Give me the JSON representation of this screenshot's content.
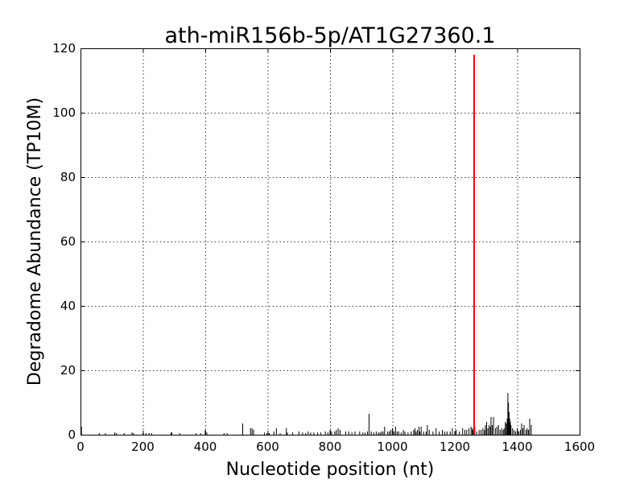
{
  "chart_data": {
    "type": "bar",
    "title": "ath-miR156b-5p/AT1G27360.1",
    "xlabel": "Nucleotide position (nt)",
    "ylabel": "Degradome Abundance (TP10M)",
    "xlim": [
      0,
      1600
    ],
    "ylim": [
      0,
      120
    ],
    "xticks": [
      0,
      200,
      400,
      600,
      800,
      1000,
      1200,
      1400,
      1600
    ],
    "yticks": [
      0,
      20,
      40,
      60,
      80,
      100,
      120
    ],
    "grid": true,
    "legend": "none",
    "colors": {
      "background": "#95c85b",
      "target": "#ff0000",
      "text": "#000000"
    },
    "series": [
      {
        "color": "#000000",
        "x": [
          3,
          60,
          80,
          110,
          115,
          140,
          165,
          170,
          200,
          210,
          220,
          228,
          290,
          293,
          318,
          370,
          385,
          400,
          405,
          460,
          470,
          520,
          545,
          550,
          555,
          590,
          598,
          605,
          620,
          628,
          640,
          660,
          663,
          680,
          700,
          712,
          722,
          730,
          738,
          748,
          760,
          770,
          785,
          793,
          800,
          805,
          815,
          820,
          826,
          832,
          850,
          860,
          870,
          880,
          895,
          905,
          912,
          920,
          925,
          932,
          940,
          948,
          955,
          960,
          965,
          970,
          975,
          985,
          990,
          995,
          1000,
          1005,
          1010,
          1015,
          1020,
          1028,
          1035,
          1040,
          1050,
          1060,
          1068,
          1072,
          1076,
          1080,
          1085,
          1088,
          1092,
          1100,
          1108,
          1112,
          1118,
          1130,
          1140,
          1150,
          1160,
          1168,
          1175,
          1185,
          1192,
          1200,
          1205,
          1215,
          1225,
          1232,
          1238,
          1245,
          1252,
          1256,
          1258,
          1264,
          1270,
          1278,
          1284,
          1290,
          1295,
          1298,
          1302,
          1306,
          1310,
          1314,
          1316,
          1320,
          1324,
          1330,
          1335,
          1340,
          1345,
          1350,
          1355,
          1358,
          1362,
          1365,
          1368,
          1370,
          1372,
          1374,
          1376,
          1378,
          1380,
          1385,
          1390,
          1395,
          1400,
          1405,
          1410,
          1414,
          1418,
          1422,
          1428,
          1432,
          1436,
          1440,
          1445
        ],
        "y": [
          2.5,
          0.5,
          0.5,
          0.7,
          0.5,
          0.5,
          0.7,
          0.5,
          0.5,
          0.5,
          0.5,
          0.5,
          0.7,
          0.7,
          0.5,
          0.5,
          0.5,
          1.5,
          0.7,
          0.5,
          0.5,
          3.5,
          2,
          2,
          1.5,
          0.7,
          0.5,
          0.5,
          1,
          2,
          0.5,
          2,
          0.7,
          0.7,
          1,
          0.7,
          0.5,
          1,
          0.7,
          0.7,
          0.7,
          0.7,
          1,
          0.7,
          1.5,
          1,
          1,
          1.5,
          2,
          1.5,
          1,
          1,
          0.7,
          1,
          1,
          0.7,
          0.7,
          1,
          6.5,
          1,
          0.7,
          1,
          0.7,
          0.7,
          1,
          1,
          2.5,
          1,
          1,
          1.5,
          2,
          1,
          2.5,
          1,
          1,
          0.7,
          1.5,
          1,
          0.7,
          1,
          1.5,
          2,
          1,
          1.5,
          2.5,
          1,
          2.5,
          1,
          1,
          3,
          1.5,
          1,
          2,
          1,
          1.5,
          1,
          1,
          1,
          2,
          1,
          1.5,
          1,
          2,
          1.5,
          1.5,
          2,
          2.5,
          2,
          1.5,
          2.5,
          1,
          1.5,
          1.5,
          2,
          1.5,
          3,
          4,
          2,
          3,
          2.5,
          5.5,
          3,
          5.5,
          2,
          2.5,
          3,
          1.5,
          2,
          1.5,
          2,
          4,
          3.5,
          5,
          13,
          10,
          7,
          5,
          4,
          3,
          2,
          1.5,
          1,
          2,
          1,
          1.5,
          3.5,
          2,
          3,
          1.5,
          2,
          1.5,
          5,
          3
        ]
      },
      {
        "color": "#ff0000",
        "x": [
          1262
        ],
        "y": [
          118
        ]
      }
    ]
  }
}
